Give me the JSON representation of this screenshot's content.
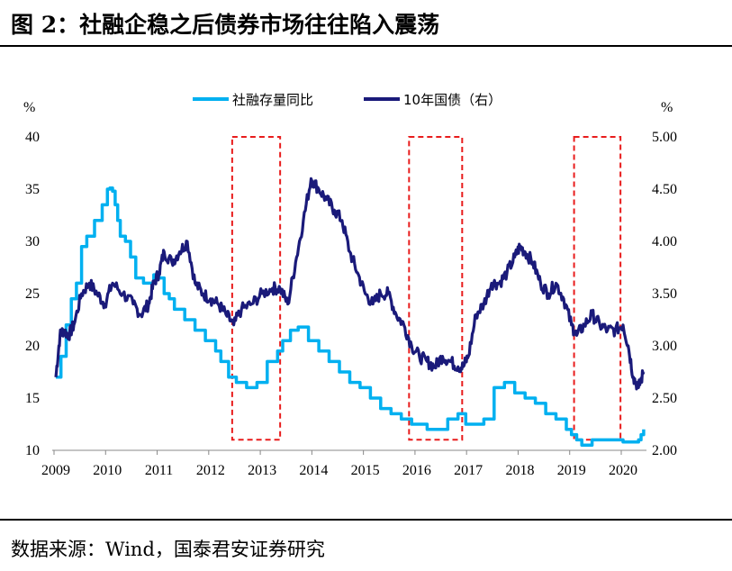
{
  "title": "图 2：社融企稳之后债券市场往往陷入震荡",
  "source": "数据来源：Wind，国泰君安证券研究",
  "chart_data": {
    "type": "line",
    "left_axis": {
      "unit": "%",
      "ticks": [
        "10",
        "15",
        "20",
        "25",
        "30",
        "35",
        "40"
      ],
      "ylim": [
        10,
        40
      ]
    },
    "right_axis": {
      "unit": "%",
      "ticks": [
        "2.00",
        "2.50",
        "3.00",
        "3.50",
        "4.00",
        "4.50",
        "5.00"
      ],
      "ylim": [
        2.0,
        5.0
      ]
    },
    "x_ticks": [
      "2009",
      "2010",
      "2011",
      "2012",
      "2013",
      "2014",
      "2015",
      "2016",
      "2017",
      "2018",
      "2019",
      "2020"
    ],
    "xlim": [
      2009.0,
      2020.45
    ],
    "colors": {
      "social_financing": "#00b0f0",
      "bond_10y": "#1a1a7a",
      "highlight_box": "#e81c1c"
    },
    "series": [
      {
        "name": "社融存量同比",
        "axis": "left",
        "x": [
          2009.0,
          2009.1,
          2009.2,
          2009.3,
          2009.4,
          2009.5,
          2009.6,
          2009.75,
          2009.9,
          2010.0,
          2010.05,
          2010.1,
          2010.15,
          2010.2,
          2010.25,
          2010.35,
          2010.45,
          2010.55,
          2010.7,
          2010.8,
          2010.9,
          2011.0,
          2011.1,
          2011.2,
          2011.3,
          2011.5,
          2011.7,
          2011.9,
          2012.1,
          2012.2,
          2012.35,
          2012.5,
          2012.7,
          2012.9,
          2013.1,
          2013.3,
          2013.4,
          2013.55,
          2013.7,
          2013.9,
          2014.1,
          2014.3,
          2014.5,
          2014.7,
          2014.9,
          2015.1,
          2015.3,
          2015.5,
          2015.7,
          2015.9,
          2016.1,
          2016.2,
          2016.3,
          2016.4,
          2016.6,
          2016.8,
          2016.95,
          2017.1,
          2017.3,
          2017.5,
          2017.7,
          2017.9,
          2018.1,
          2018.3,
          2018.5,
          2018.7,
          2018.9,
          2019.0,
          2019.1,
          2019.2,
          2019.4,
          2019.6,
          2019.8,
          2020.0,
          2020.1,
          2020.2,
          2020.3,
          2020.35,
          2020.4
        ],
        "values": [
          17.0,
          19.0,
          22.0,
          24.5,
          26.0,
          29.5,
          30.5,
          32.0,
          33.5,
          35.0,
          35.1,
          34.8,
          33.5,
          32.0,
          30.5,
          30.0,
          28.5,
          26.5,
          26.0,
          26.0,
          26.8,
          26.5,
          25.0,
          24.5,
          23.5,
          22.5,
          21.5,
          20.5,
          19.5,
          18.5,
          17.0,
          16.5,
          16.0,
          16.5,
          18.5,
          19.5,
          20.5,
          21.5,
          21.8,
          20.5,
          19.5,
          18.5,
          17.5,
          16.5,
          16.0,
          15.0,
          14.0,
          13.5,
          13.0,
          12.5,
          12.5,
          12.0,
          12.0,
          12.0,
          13.0,
          13.5,
          12.5,
          12.5,
          13.0,
          16.0,
          16.5,
          15.5,
          15.0,
          14.5,
          13.5,
          13.0,
          12.0,
          11.5,
          11.0,
          10.5,
          11.0,
          11.0,
          11.0,
          10.8,
          10.8,
          10.8,
          11.0,
          11.5,
          12.0
        ]
      },
      {
        "name": "10年国债（右）",
        "axis": "right",
        "x": [
          2009.0,
          2009.08,
          2009.15,
          2009.25,
          2009.35,
          2009.5,
          2009.65,
          2009.8,
          2009.95,
          2010.1,
          2010.3,
          2010.5,
          2010.65,
          2010.8,
          2010.9,
          2011.0,
          2011.1,
          2011.25,
          2011.4,
          2011.55,
          2011.7,
          2011.85,
          2012.0,
          2012.15,
          2012.3,
          2012.45,
          2012.6,
          2012.8,
          2013.0,
          2013.2,
          2013.35,
          2013.5,
          2013.65,
          2013.8,
          2013.95,
          2014.1,
          2014.25,
          2014.4,
          2014.55,
          2014.7,
          2014.85,
          2015.0,
          2015.15,
          2015.3,
          2015.45,
          2015.6,
          2015.75,
          2015.9,
          2016.05,
          2016.2,
          2016.35,
          2016.5,
          2016.65,
          2016.8,
          2016.9,
          2017.0,
          2017.15,
          2017.3,
          2017.45,
          2017.6,
          2017.75,
          2017.9,
          2018.0,
          2018.1,
          2018.25,
          2018.4,
          2018.55,
          2018.7,
          2018.85,
          2019.0,
          2019.1,
          2019.25,
          2019.4,
          2019.55,
          2019.7,
          2019.85,
          2020.0,
          2020.1,
          2020.2,
          2020.3,
          2020.4
        ],
        "values": [
          2.7,
          3.1,
          3.15,
          3.1,
          3.2,
          3.5,
          3.6,
          3.5,
          3.4,
          3.6,
          3.5,
          3.4,
          3.3,
          3.4,
          3.6,
          3.7,
          3.9,
          3.8,
          3.9,
          4.0,
          3.6,
          3.5,
          3.45,
          3.4,
          3.3,
          3.2,
          3.35,
          3.4,
          3.5,
          3.55,
          3.55,
          3.4,
          3.8,
          4.2,
          4.6,
          4.5,
          4.4,
          4.3,
          4.2,
          3.9,
          3.7,
          3.5,
          3.4,
          3.5,
          3.5,
          3.3,
          3.2,
          3.0,
          2.9,
          2.85,
          2.8,
          2.9,
          2.85,
          2.8,
          2.8,
          2.9,
          3.3,
          3.4,
          3.6,
          3.6,
          3.7,
          3.85,
          3.95,
          3.9,
          3.8,
          3.6,
          3.5,
          3.6,
          3.45,
          3.2,
          3.1,
          3.2,
          3.3,
          3.2,
          3.15,
          3.15,
          3.2,
          3.0,
          2.7,
          2.6,
          2.75
        ]
      }
    ],
    "highlight_periods": [
      {
        "x": [
          2012.42,
          2013.35
        ],
        "ylim": [
          10.5,
          40
        ]
      },
      {
        "x": [
          2015.85,
          2016.88
        ],
        "ylim": [
          10.5,
          40
        ]
      },
      {
        "x": [
          2019.05,
          2019.95
        ],
        "ylim": [
          10.5,
          40
        ]
      }
    ],
    "legend": {
      "position": "top-center"
    }
  }
}
